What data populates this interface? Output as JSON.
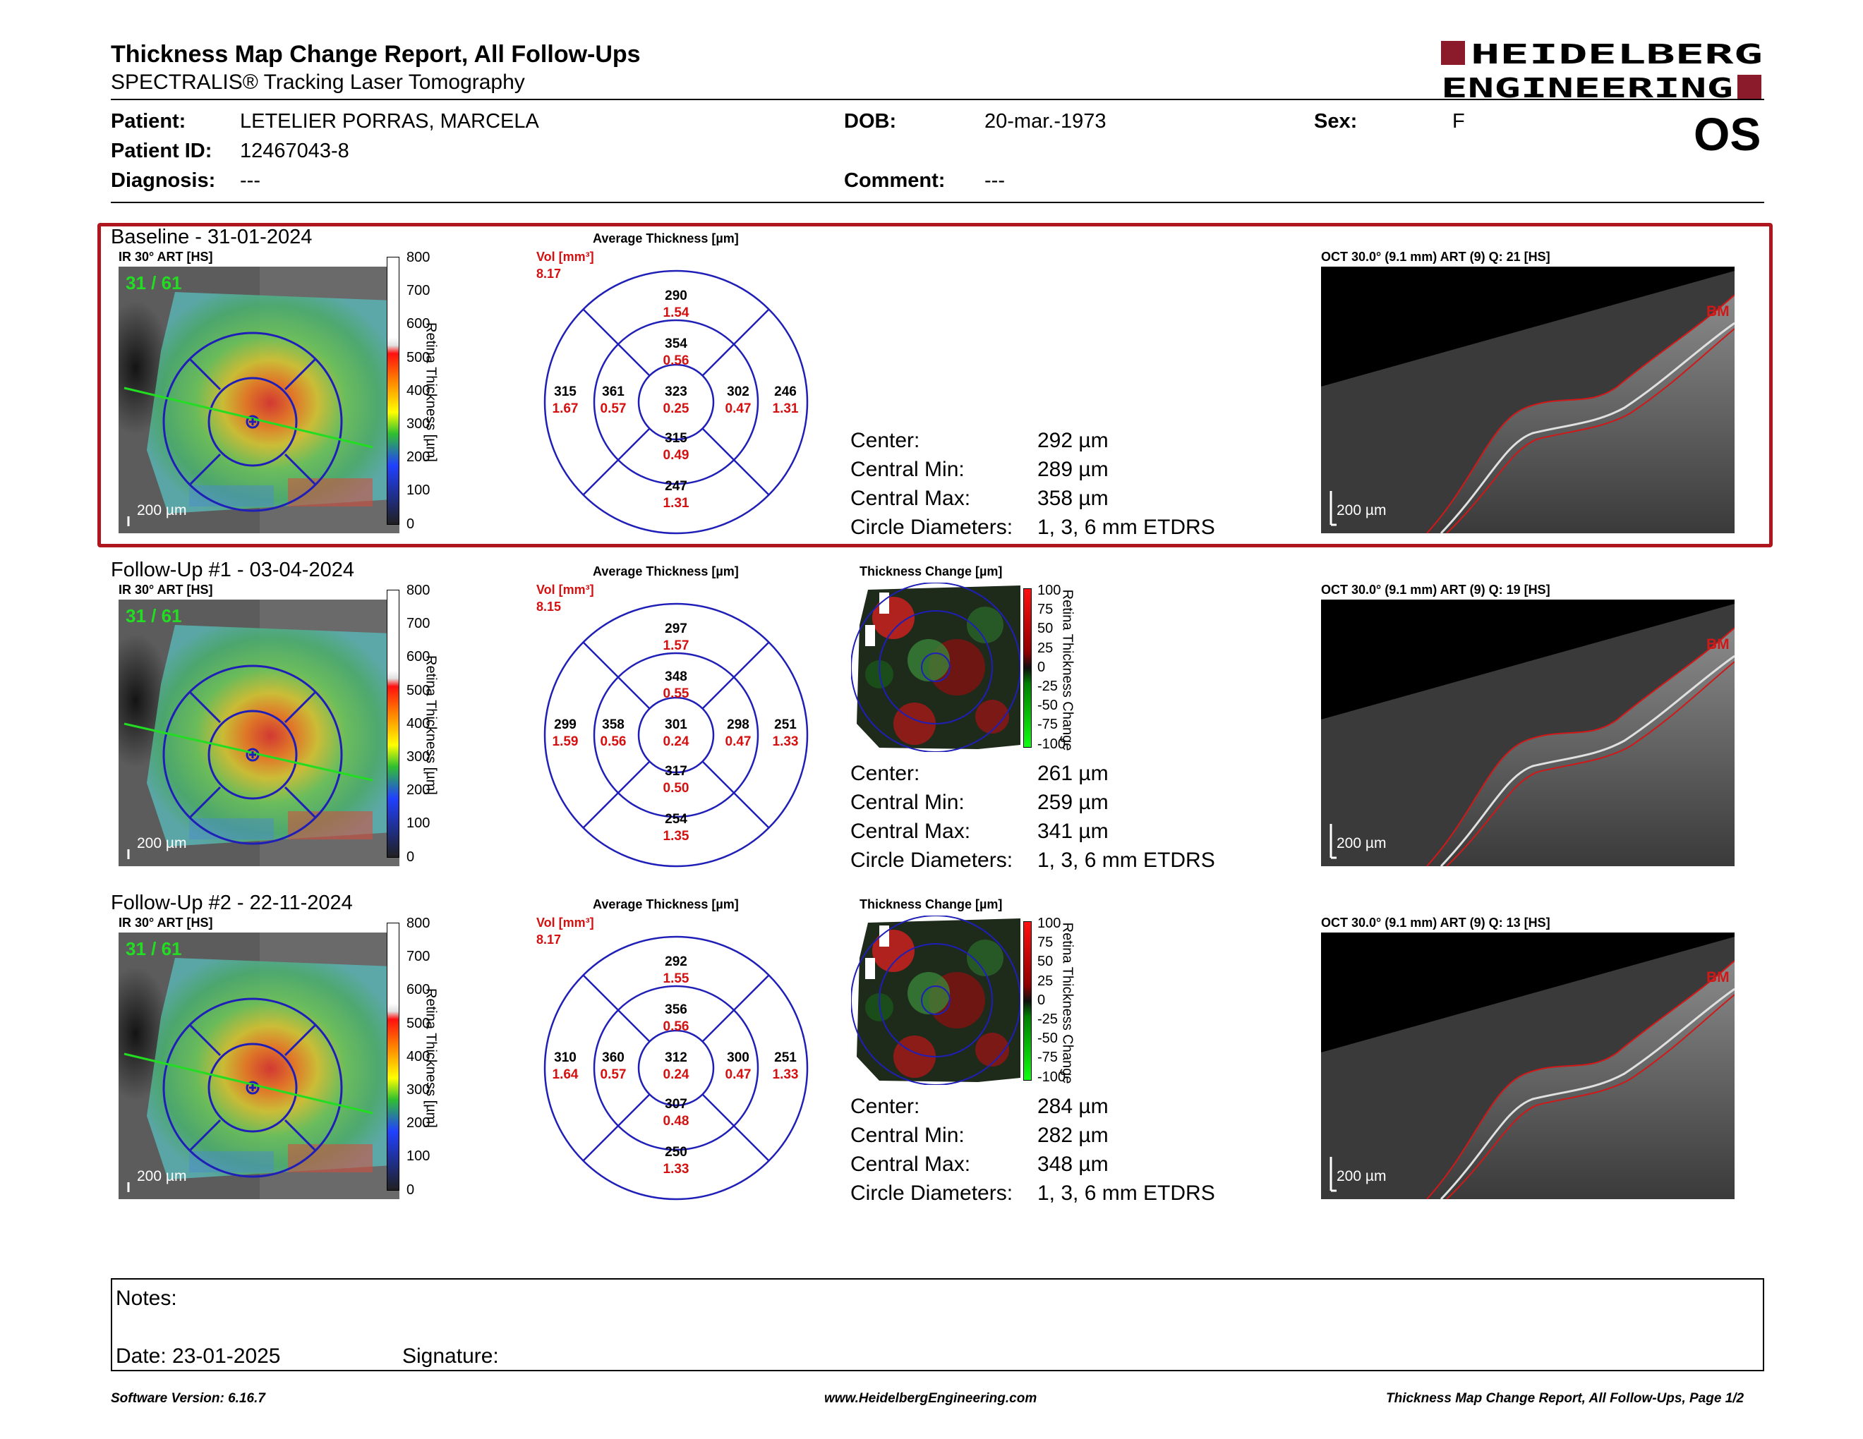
{
  "header": {
    "title": "Thickness Map Change Report, All Follow-Ups",
    "subtitle": "SPECTRALIS® Tracking Laser Tomography",
    "logo_line1": "HEIDELBERG",
    "logo_line2": "ENGINEERING",
    "eye": "OS"
  },
  "patient": {
    "patient_label": "Patient:",
    "patient_value": "LETELIER PORRAS, MARCELA",
    "id_label": "Patient ID:",
    "id_value": "12467043-8",
    "diagnosis_label": "Diagnosis:",
    "diagnosis_value": "---",
    "dob_label": "DOB:",
    "dob_value": "20-mar.-1973",
    "comment_label": "Comment:",
    "comment_value": "---",
    "sex_label": "Sex:",
    "sex_value": "F"
  },
  "common": {
    "ir_label": "IR 30° ART [HS]",
    "avg_thickness_title": "Average Thickness [µm]",
    "vol_label": "Vol [mm³]",
    "change_title": "Thickness Change [µm]",
    "scale_ticks": [
      "800",
      "700",
      "600",
      "500",
      "400",
      "300",
      "200",
      "100",
      "0"
    ],
    "scale_axis_label": "Retina Thickness [µm]",
    "change_ticks": [
      "100",
      "75",
      "50",
      "25",
      "0",
      "-25",
      "-50",
      "-75",
      "-100"
    ],
    "change_axis_label": "Retina Thickness Change",
    "scale_bar": "200 µm",
    "frame_count": "31 / 61",
    "bm_label": "BM",
    "stat_labels": {
      "center": "Center:",
      "min": "Central Min:",
      "max": "Central Max:",
      "diam": "Circle Diameters:"
    }
  },
  "exams": [
    {
      "title": "Baseline - 31-01-2024",
      "oct_label": "OCT 30.0° (9.1 mm) ART (9) Q: 21 [HS]",
      "vol": "8.17",
      "sectors": {
        "top_outer": [
          "290",
          "1.54"
        ],
        "top_inner": [
          "354",
          "0.56"
        ],
        "left_outer": [
          "315",
          "1.67"
        ],
        "left_inner": [
          "361",
          "0.57"
        ],
        "center": [
          "323",
          "0.25"
        ],
        "right_inner": [
          "302",
          "0.47"
        ],
        "right_outer": [
          "246",
          "1.31"
        ],
        "bottom_inner": [
          "315",
          "0.49"
        ],
        "bottom_outer": [
          "247",
          "1.31"
        ]
      },
      "stats": {
        "center": "292 µm",
        "min": "289 µm",
        "max": "358 µm",
        "diam": "1, 3, 6 mm ETDRS"
      },
      "has_change": false
    },
    {
      "title": "Follow-Up #1 - 03-04-2024",
      "oct_label": "OCT 30.0° (9.1 mm) ART (9) Q: 19 [HS]",
      "vol": "8.15",
      "sectors": {
        "top_outer": [
          "297",
          "1.57"
        ],
        "top_inner": [
          "348",
          "0.55"
        ],
        "left_outer": [
          "299",
          "1.59"
        ],
        "left_inner": [
          "358",
          "0.56"
        ],
        "center": [
          "301",
          "0.24"
        ],
        "right_inner": [
          "298",
          "0.47"
        ],
        "right_outer": [
          "251",
          "1.33"
        ],
        "bottom_inner": [
          "317",
          "0.50"
        ],
        "bottom_outer": [
          "254",
          "1.35"
        ]
      },
      "stats": {
        "center": "261 µm",
        "min": "259 µm",
        "max": "341 µm",
        "diam": "1, 3, 6 mm ETDRS"
      },
      "has_change": true
    },
    {
      "title": "Follow-Up #2 - 22-11-2024",
      "oct_label": "OCT 30.0° (9.1 mm) ART (9) Q: 13 [HS]",
      "vol": "8.17",
      "sectors": {
        "top_outer": [
          "292",
          "1.55"
        ],
        "top_inner": [
          "356",
          "0.56"
        ],
        "left_outer": [
          "310",
          "1.64"
        ],
        "left_inner": [
          "360",
          "0.57"
        ],
        "center": [
          "312",
          "0.24"
        ],
        "right_inner": [
          "300",
          "0.47"
        ],
        "right_outer": [
          "251",
          "1.33"
        ],
        "bottom_inner": [
          "307",
          "0.48"
        ],
        "bottom_outer": [
          "250",
          "1.33"
        ]
      },
      "stats": {
        "center": "284 µm",
        "min": "282 µm",
        "max": "348 µm",
        "diam": "1, 3, 6 mm ETDRS"
      },
      "has_change": true
    }
  ],
  "notes": {
    "notes_label": "Notes:",
    "date_label": "Date: 23-01-2025",
    "signature_label": "Signature:"
  },
  "footer": {
    "software": "Software Version: 6.16.7",
    "website": "www.HeidelbergEngineering.com",
    "page": "Thickness Map Change Report, All Follow-Ups, Page 1/2"
  },
  "colors": {
    "brand_red": "#8b1a2b",
    "highlight_border": "#b0161e",
    "grid_blue": "#1f1fb8",
    "volume_red": "#d41010",
    "frame_green": "#22dd22"
  }
}
